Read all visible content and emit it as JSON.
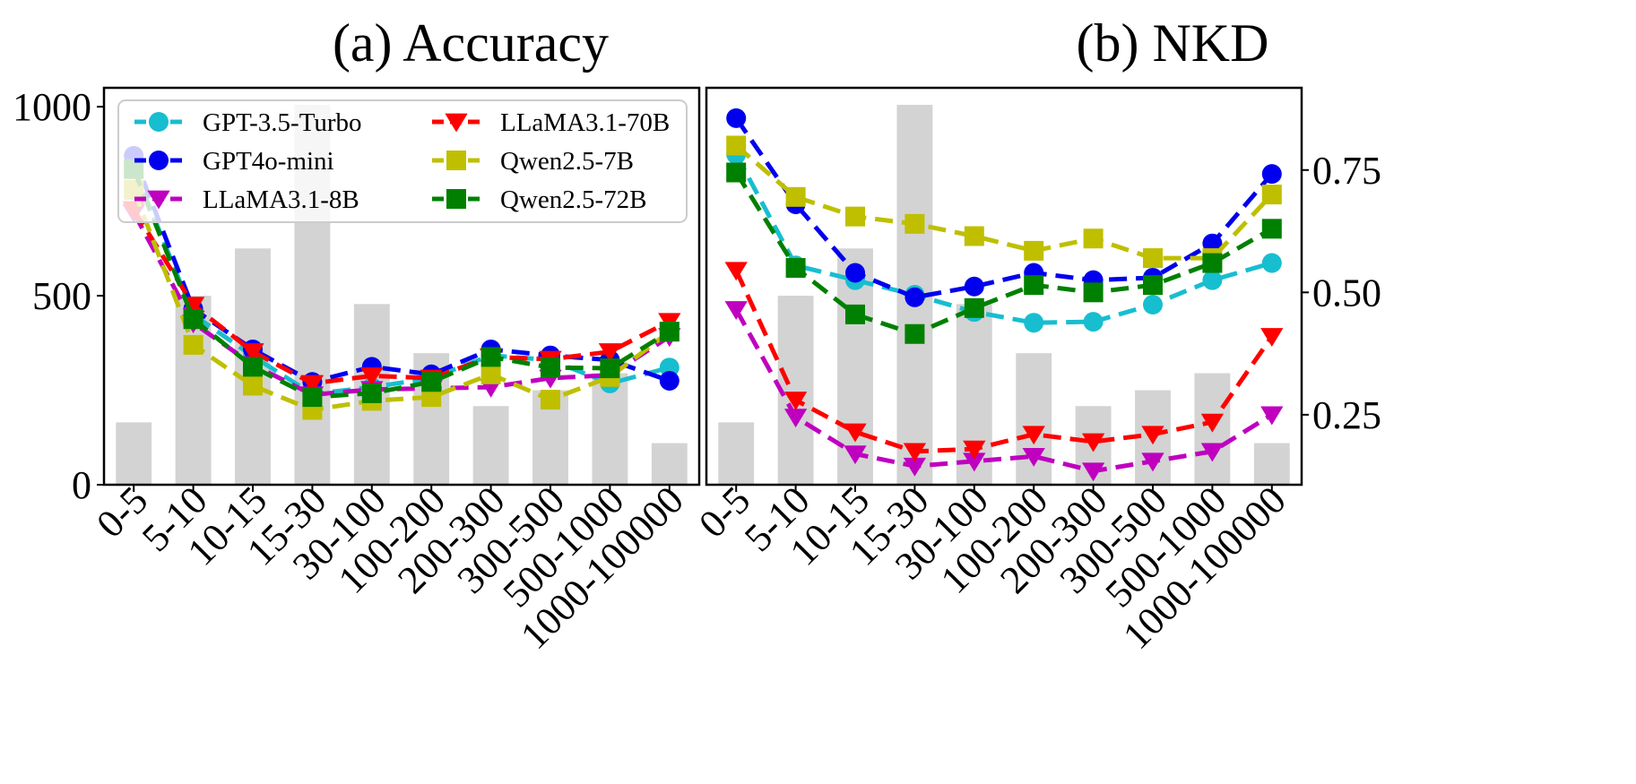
{
  "chart_data": [
    {
      "type": "bar+line",
      "title": "(a) Accuracy",
      "categories": [
        "0-5",
        "5-10",
        "10-15",
        "15-30",
        "30-100",
        "100-200",
        "200-300",
        "300-500",
        "500-1000",
        "1000-100000"
      ],
      "bars": [
        165,
        500,
        625,
        1005,
        478,
        348,
        208,
        250,
        295,
        110
      ],
      "bar_color": "#d3d3d3",
      "ylim": [
        0,
        1050
      ],
      "yticks": [
        0,
        500,
        1000
      ],
      "ytick_labels": [
        "0",
        "500",
        "1000"
      ],
      "series": [
        {
          "name": "GPT-3.5-Turbo",
          "color": "#17becf",
          "marker": "circle",
          "values": [
            840,
            450,
            340,
            240,
            258,
            282,
            342,
            330,
            268,
            310
          ]
        },
        {
          "name": "GPT4o-mini",
          "color": "#0000ee",
          "marker": "circle",
          "values": [
            870,
            465,
            358,
            272,
            312,
            292,
            358,
            342,
            330,
            275
          ]
        },
        {
          "name": "LLaMA3.1-8B",
          "color": "#bf00bf",
          "marker": "triangle-down",
          "values": [
            720,
            428,
            318,
            238,
            252,
            255,
            258,
            282,
            290,
            392
          ]
        },
        {
          "name": "LLaMA3.1-70B",
          "color": "#ff0000",
          "marker": "triangle-down",
          "values": [
            728,
            475,
            352,
            268,
            288,
            282,
            338,
            332,
            352,
            432
          ]
        },
        {
          "name": "Qwen2.5-7B",
          "color": "#bfbf00",
          "marker": "square",
          "values": [
            780,
            370,
            262,
            198,
            222,
            232,
            292,
            225,
            285,
            405
          ]
        },
        {
          "name": "Qwen2.5-72B",
          "color": "#008000",
          "marker": "square",
          "values": [
            835,
            438,
            312,
            232,
            242,
            272,
            338,
            310,
            308,
            405
          ]
        }
      ],
      "legend": "upper-center, 2 columns"
    },
    {
      "type": "bar+line",
      "title": "(b) NKD",
      "categories": [
        "0-5",
        "5-10",
        "10-15",
        "15-30",
        "30-100",
        "100-200",
        "200-300",
        "300-500",
        "500-1000",
        "1000-100000"
      ],
      "bars": [
        165,
        500,
        625,
        1005,
        478,
        348,
        208,
        250,
        295,
        110
      ],
      "bar_color": "#d3d3d3",
      "ylim": [
        0.107,
        0.918
      ],
      "yticks": [
        0.25,
        0.5,
        0.75
      ],
      "ytick_labels": [
        "0.25",
        "0.50",
        "0.75"
      ],
      "series": [
        {
          "name": "GPT-3.5-Turbo",
          "color": "#17becf",
          "marker": "circle",
          "values": [
            0.782,
            0.555,
            0.525,
            0.495,
            0.46,
            0.438,
            0.44,
            0.475,
            0.525,
            0.56
          ]
        },
        {
          "name": "GPT4o-mini",
          "color": "#0000ee",
          "marker": "circle",
          "values": [
            0.856,
            0.68,
            0.54,
            0.49,
            0.512,
            0.54,
            0.525,
            0.53,
            0.6,
            0.742
          ]
        },
        {
          "name": "LLaMA3.1-8B",
          "color": "#bf00bf",
          "marker": "triangle-down",
          "values": [
            0.465,
            0.245,
            0.17,
            0.145,
            0.155,
            0.165,
            0.135,
            0.155,
            0.175,
            0.25
          ]
        },
        {
          "name": "LLaMA3.1-70B",
          "color": "#ff0000",
          "marker": "triangle-down",
          "values": [
            0.545,
            0.28,
            0.215,
            0.175,
            0.18,
            0.21,
            0.195,
            0.21,
            0.235,
            0.41
          ]
        },
        {
          "name": "Qwen2.5-7B",
          "color": "#bfbf00",
          "marker": "square",
          "values": [
            0.8,
            0.695,
            0.655,
            0.64,
            0.615,
            0.585,
            0.61,
            0.57,
            0.57,
            0.7
          ]
        },
        {
          "name": "Qwen2.5-72B",
          "color": "#008000",
          "marker": "square",
          "values": [
            0.745,
            0.55,
            0.455,
            0.415,
            0.468,
            0.515,
            0.5,
            0.515,
            0.56,
            0.63
          ]
        }
      ]
    }
  ]
}
